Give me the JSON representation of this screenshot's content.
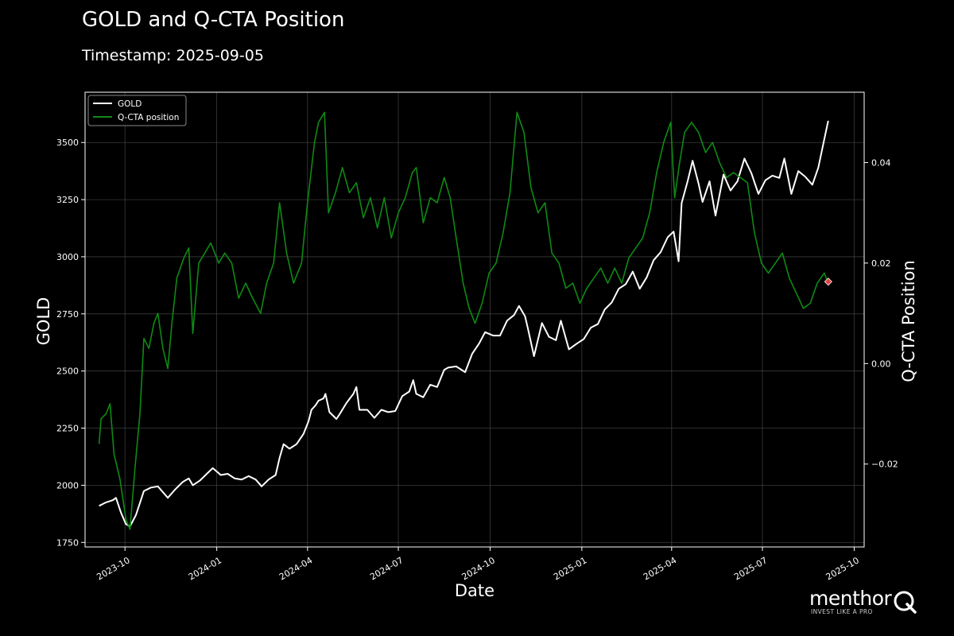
{
  "colors": {
    "background": "#000000",
    "gold_line": "#ffffff",
    "cta_line": "#0f8a14",
    "grid": "#555555",
    "marker": "#e04040"
  },
  "header": {
    "title": "GOLD and Q-CTA Position",
    "subtitle": "Timestamp: 2025-09-05"
  },
  "logo": {
    "word": "menthor",
    "tagline": "INVEST LIKE A PRO",
    "icon": "q-logo-icon"
  },
  "chart_data": {
    "type": "line",
    "title": "GOLD and Q-CTA Position",
    "xlabel": "Date",
    "ylabel": "GOLD",
    "y2label": "Q-CTA Position",
    "xlim": [
      "2023-08-22",
      "2025-10-11"
    ],
    "ylim": [
      1730,
      3720
    ],
    "y2lim": [
      -0.0365,
      0.054
    ],
    "x_ticks": [
      "2023-10-01",
      "2024-01-01",
      "2024-04-01",
      "2024-07-01",
      "2024-10-01",
      "2025-01-01",
      "2025-04-01",
      "2025-07-01",
      "2025-10-01"
    ],
    "x_tick_labels": [
      "2023-10",
      "2024-01",
      "2024-04",
      "2024-07",
      "2024-10",
      "2025-01",
      "2025-04",
      "2025-07",
      "2025-10"
    ],
    "y_ticks": [
      1750,
      2000,
      2250,
      2500,
      2750,
      3000,
      3250,
      3500
    ],
    "y_tick_labels": [
      "1750",
      "2000",
      "2250",
      "2500",
      "2750",
      "3000",
      "3250",
      "3500"
    ],
    "y2_ticks": [
      -0.02,
      0.0,
      0.02,
      0.04
    ],
    "y2_tick_labels": [
      "−0.02",
      "0.00",
      "0.02",
      "0.04"
    ],
    "grid": true,
    "legend_position": "top-left",
    "legend": [
      "GOLD",
      "Q-CTA position"
    ],
    "series": [
      {
        "name": "GOLD",
        "axis": "left",
        "points": [
          [
            "2023-09-05",
            1910
          ],
          [
            "2023-09-12",
            1925
          ],
          [
            "2023-09-19",
            1935
          ],
          [
            "2023-09-22",
            1945
          ],
          [
            "2023-09-27",
            1880
          ],
          [
            "2023-10-02",
            1830
          ],
          [
            "2023-10-06",
            1820
          ],
          [
            "2023-10-12",
            1870
          ],
          [
            "2023-10-20",
            1975
          ],
          [
            "2023-10-27",
            1990
          ],
          [
            "2023-11-03",
            1995
          ],
          [
            "2023-11-13",
            1945
          ],
          [
            "2023-11-20",
            1980
          ],
          [
            "2023-11-28",
            2015
          ],
          [
            "2023-12-04",
            2030
          ],
          [
            "2023-12-08",
            2000
          ],
          [
            "2023-12-15",
            2020
          ],
          [
            "2023-12-22",
            2050
          ],
          [
            "2023-12-28",
            2075
          ],
          [
            "2024-01-05",
            2045
          ],
          [
            "2024-01-12",
            2050
          ],
          [
            "2024-01-19",
            2030
          ],
          [
            "2024-01-26",
            2025
          ],
          [
            "2024-02-02",
            2040
          ],
          [
            "2024-02-09",
            2025
          ],
          [
            "2024-02-15",
            1995
          ],
          [
            "2024-02-22",
            2025
          ],
          [
            "2024-02-29",
            2045
          ],
          [
            "2024-03-04",
            2120
          ],
          [
            "2024-03-08",
            2180
          ],
          [
            "2024-03-14",
            2160
          ],
          [
            "2024-03-21",
            2180
          ],
          [
            "2024-03-28",
            2225
          ],
          [
            "2024-04-02",
            2280
          ],
          [
            "2024-04-05",
            2330
          ],
          [
            "2024-04-09",
            2350
          ],
          [
            "2024-04-12",
            2370
          ],
          [
            "2024-04-17",
            2380
          ],
          [
            "2024-04-19",
            2400
          ],
          [
            "2024-04-23",
            2320
          ],
          [
            "2024-04-30",
            2290
          ],
          [
            "2024-05-03",
            2310
          ],
          [
            "2024-05-10",
            2360
          ],
          [
            "2024-05-17",
            2400
          ],
          [
            "2024-05-20",
            2430
          ],
          [
            "2024-05-23",
            2330
          ],
          [
            "2024-05-31",
            2330
          ],
          [
            "2024-06-07",
            2295
          ],
          [
            "2024-06-14",
            2330
          ],
          [
            "2024-06-21",
            2320
          ],
          [
            "2024-06-28",
            2325
          ],
          [
            "2024-07-05",
            2390
          ],
          [
            "2024-07-12",
            2410
          ],
          [
            "2024-07-16",
            2460
          ],
          [
            "2024-07-19",
            2400
          ],
          [
            "2024-07-26",
            2385
          ],
          [
            "2024-08-02",
            2440
          ],
          [
            "2024-08-09",
            2430
          ],
          [
            "2024-08-16",
            2505
          ],
          [
            "2024-08-20",
            2515
          ],
          [
            "2024-08-28",
            2520
          ],
          [
            "2024-09-06",
            2495
          ],
          [
            "2024-09-13",
            2575
          ],
          [
            "2024-09-20",
            2620
          ],
          [
            "2024-09-26",
            2670
          ],
          [
            "2024-10-04",
            2655
          ],
          [
            "2024-10-11",
            2655
          ],
          [
            "2024-10-18",
            2720
          ],
          [
            "2024-10-25",
            2745
          ],
          [
            "2024-10-30",
            2785
          ],
          [
            "2024-11-05",
            2740
          ],
          [
            "2024-11-08",
            2685
          ],
          [
            "2024-11-14",
            2565
          ],
          [
            "2024-11-22",
            2710
          ],
          [
            "2024-11-29",
            2650
          ],
          [
            "2024-12-06",
            2635
          ],
          [
            "2024-12-11",
            2720
          ],
          [
            "2024-12-19",
            2595
          ],
          [
            "2024-12-27",
            2620
          ],
          [
            "2025-01-03",
            2640
          ],
          [
            "2025-01-10",
            2690
          ],
          [
            "2025-01-17",
            2705
          ],
          [
            "2025-01-24",
            2770
          ],
          [
            "2025-01-31",
            2800
          ],
          [
            "2025-02-07",
            2860
          ],
          [
            "2025-02-14",
            2880
          ],
          [
            "2025-02-21",
            2935
          ],
          [
            "2025-02-28",
            2860
          ],
          [
            "2025-03-07",
            2910
          ],
          [
            "2025-03-14",
            2985
          ],
          [
            "2025-03-21",
            3020
          ],
          [
            "2025-03-28",
            3085
          ],
          [
            "2025-04-03",
            3110
          ],
          [
            "2025-04-08",
            2980
          ],
          [
            "2025-04-11",
            3235
          ],
          [
            "2025-04-17",
            3330
          ],
          [
            "2025-04-22",
            3420
          ],
          [
            "2025-04-28",
            3320
          ],
          [
            "2025-05-02",
            3240
          ],
          [
            "2025-05-09",
            3330
          ],
          [
            "2025-05-15",
            3180
          ],
          [
            "2025-05-23",
            3360
          ],
          [
            "2025-05-30",
            3290
          ],
          [
            "2025-06-06",
            3330
          ],
          [
            "2025-06-13",
            3430
          ],
          [
            "2025-06-20",
            3365
          ],
          [
            "2025-06-27",
            3275
          ],
          [
            "2025-07-04",
            3335
          ],
          [
            "2025-07-11",
            3355
          ],
          [
            "2025-07-18",
            3345
          ],
          [
            "2025-07-23",
            3430
          ],
          [
            "2025-07-30",
            3275
          ],
          [
            "2025-08-06",
            3375
          ],
          [
            "2025-08-13",
            3350
          ],
          [
            "2025-08-20",
            3315
          ],
          [
            "2025-08-26",
            3390
          ],
          [
            "2025-09-02",
            3535
          ],
          [
            "2025-09-05",
            3595
          ]
        ]
      },
      {
        "name": "Q-CTA position",
        "axis": "right",
        "points": [
          [
            "2023-09-05",
            -0.016
          ],
          [
            "2023-09-07",
            -0.011
          ],
          [
            "2023-09-12",
            -0.01
          ],
          [
            "2023-09-16",
            -0.008
          ],
          [
            "2023-09-20",
            -0.018
          ],
          [
            "2023-09-26",
            -0.023
          ],
          [
            "2023-10-02",
            -0.031
          ],
          [
            "2023-10-06",
            -0.033
          ],
          [
            "2023-10-11",
            -0.021
          ],
          [
            "2023-10-16",
            -0.01
          ],
          [
            "2023-10-20",
            0.005
          ],
          [
            "2023-10-25",
            0.003
          ],
          [
            "2023-10-30",
            0.008
          ],
          [
            "2023-11-03",
            0.01
          ],
          [
            "2023-11-08",
            0.003
          ],
          [
            "2023-11-13",
            -0.001
          ],
          [
            "2023-11-17",
            0.008
          ],
          [
            "2023-11-22",
            0.017
          ],
          [
            "2023-11-29",
            0.021
          ],
          [
            "2023-12-04",
            0.023
          ],
          [
            "2023-12-08",
            0.006
          ],
          [
            "2023-12-14",
            0.02
          ],
          [
            "2023-12-20",
            0.022
          ],
          [
            "2023-12-26",
            0.024
          ],
          [
            "2024-01-03",
            0.02
          ],
          [
            "2024-01-09",
            0.022
          ],
          [
            "2024-01-16",
            0.02
          ],
          [
            "2024-01-23",
            0.013
          ],
          [
            "2024-01-30",
            0.016
          ],
          [
            "2024-02-06",
            0.013
          ],
          [
            "2024-02-14",
            0.01
          ],
          [
            "2024-02-20",
            0.016
          ],
          [
            "2024-02-27",
            0.02
          ],
          [
            "2024-03-04",
            0.032
          ],
          [
            "2024-03-11",
            0.022
          ],
          [
            "2024-03-18",
            0.016
          ],
          [
            "2024-03-26",
            0.02
          ],
          [
            "2024-04-01",
            0.032
          ],
          [
            "2024-04-08",
            0.044
          ],
          [
            "2024-04-12",
            0.048
          ],
          [
            "2024-04-18",
            0.05
          ],
          [
            "2024-04-22",
            0.03
          ],
          [
            "2024-04-29",
            0.034
          ],
          [
            "2024-05-06",
            0.039
          ],
          [
            "2024-05-13",
            0.034
          ],
          [
            "2024-05-20",
            0.036
          ],
          [
            "2024-05-27",
            0.029
          ],
          [
            "2024-06-03",
            0.033
          ],
          [
            "2024-06-10",
            0.027
          ],
          [
            "2024-06-17",
            0.033
          ],
          [
            "2024-06-24",
            0.025
          ],
          [
            "2024-07-01",
            0.03
          ],
          [
            "2024-07-08",
            0.033
          ],
          [
            "2024-07-15",
            0.038
          ],
          [
            "2024-07-19",
            0.039
          ],
          [
            "2024-07-26",
            0.028
          ],
          [
            "2024-08-02",
            0.033
          ],
          [
            "2024-08-09",
            0.032
          ],
          [
            "2024-08-16",
            0.037
          ],
          [
            "2024-08-22",
            0.033
          ],
          [
            "2024-08-28",
            0.025
          ],
          [
            "2024-09-04",
            0.016
          ],
          [
            "2024-09-10",
            0.011
          ],
          [
            "2024-09-16",
            0.008
          ],
          [
            "2024-09-23",
            0.012
          ],
          [
            "2024-09-30",
            0.018
          ],
          [
            "2024-10-07",
            0.02
          ],
          [
            "2024-10-14",
            0.026
          ],
          [
            "2024-10-21",
            0.034
          ],
          [
            "2024-10-28",
            0.05
          ],
          [
            "2024-11-04",
            0.046
          ],
          [
            "2024-11-11",
            0.035
          ],
          [
            "2024-11-18",
            0.03
          ],
          [
            "2024-11-25",
            0.032
          ],
          [
            "2024-12-02",
            0.022
          ],
          [
            "2024-12-09",
            0.02
          ],
          [
            "2024-12-16",
            0.015
          ],
          [
            "2024-12-23",
            0.016
          ],
          [
            "2024-12-30",
            0.012
          ],
          [
            "2025-01-06",
            0.015
          ],
          [
            "2025-01-13",
            0.017
          ],
          [
            "2025-01-20",
            0.019
          ],
          [
            "2025-01-27",
            0.016
          ],
          [
            "2025-02-03",
            0.019
          ],
          [
            "2025-02-10",
            0.016
          ],
          [
            "2025-02-17",
            0.021
          ],
          [
            "2025-02-24",
            0.023
          ],
          [
            "2025-03-03",
            0.025
          ],
          [
            "2025-03-10",
            0.03
          ],
          [
            "2025-03-17",
            0.038
          ],
          [
            "2025-03-24",
            0.044
          ],
          [
            "2025-03-31",
            0.048
          ],
          [
            "2025-04-04",
            0.033
          ],
          [
            "2025-04-09",
            0.04
          ],
          [
            "2025-04-14",
            0.046
          ],
          [
            "2025-04-21",
            0.048
          ],
          [
            "2025-04-28",
            0.046
          ],
          [
            "2025-05-05",
            0.042
          ],
          [
            "2025-05-12",
            0.044
          ],
          [
            "2025-05-19",
            0.04
          ],
          [
            "2025-05-26",
            0.037
          ],
          [
            "2025-06-02",
            0.038
          ],
          [
            "2025-06-09",
            0.037
          ],
          [
            "2025-06-16",
            0.036
          ],
          [
            "2025-06-23",
            0.026
          ],
          [
            "2025-06-30",
            0.02
          ],
          [
            "2025-07-07",
            0.018
          ],
          [
            "2025-07-14",
            0.02
          ],
          [
            "2025-07-21",
            0.022
          ],
          [
            "2025-07-28",
            0.017
          ],
          [
            "2025-08-04",
            0.014
          ],
          [
            "2025-08-11",
            0.011
          ],
          [
            "2025-08-18",
            0.012
          ],
          [
            "2025-08-25",
            0.016
          ],
          [
            "2025-09-01",
            0.018
          ],
          [
            "2025-09-05",
            0.016
          ]
        ]
      }
    ],
    "marker": {
      "series": "Q-CTA position",
      "x": "2025-09-05",
      "y": 0.0163
    }
  }
}
